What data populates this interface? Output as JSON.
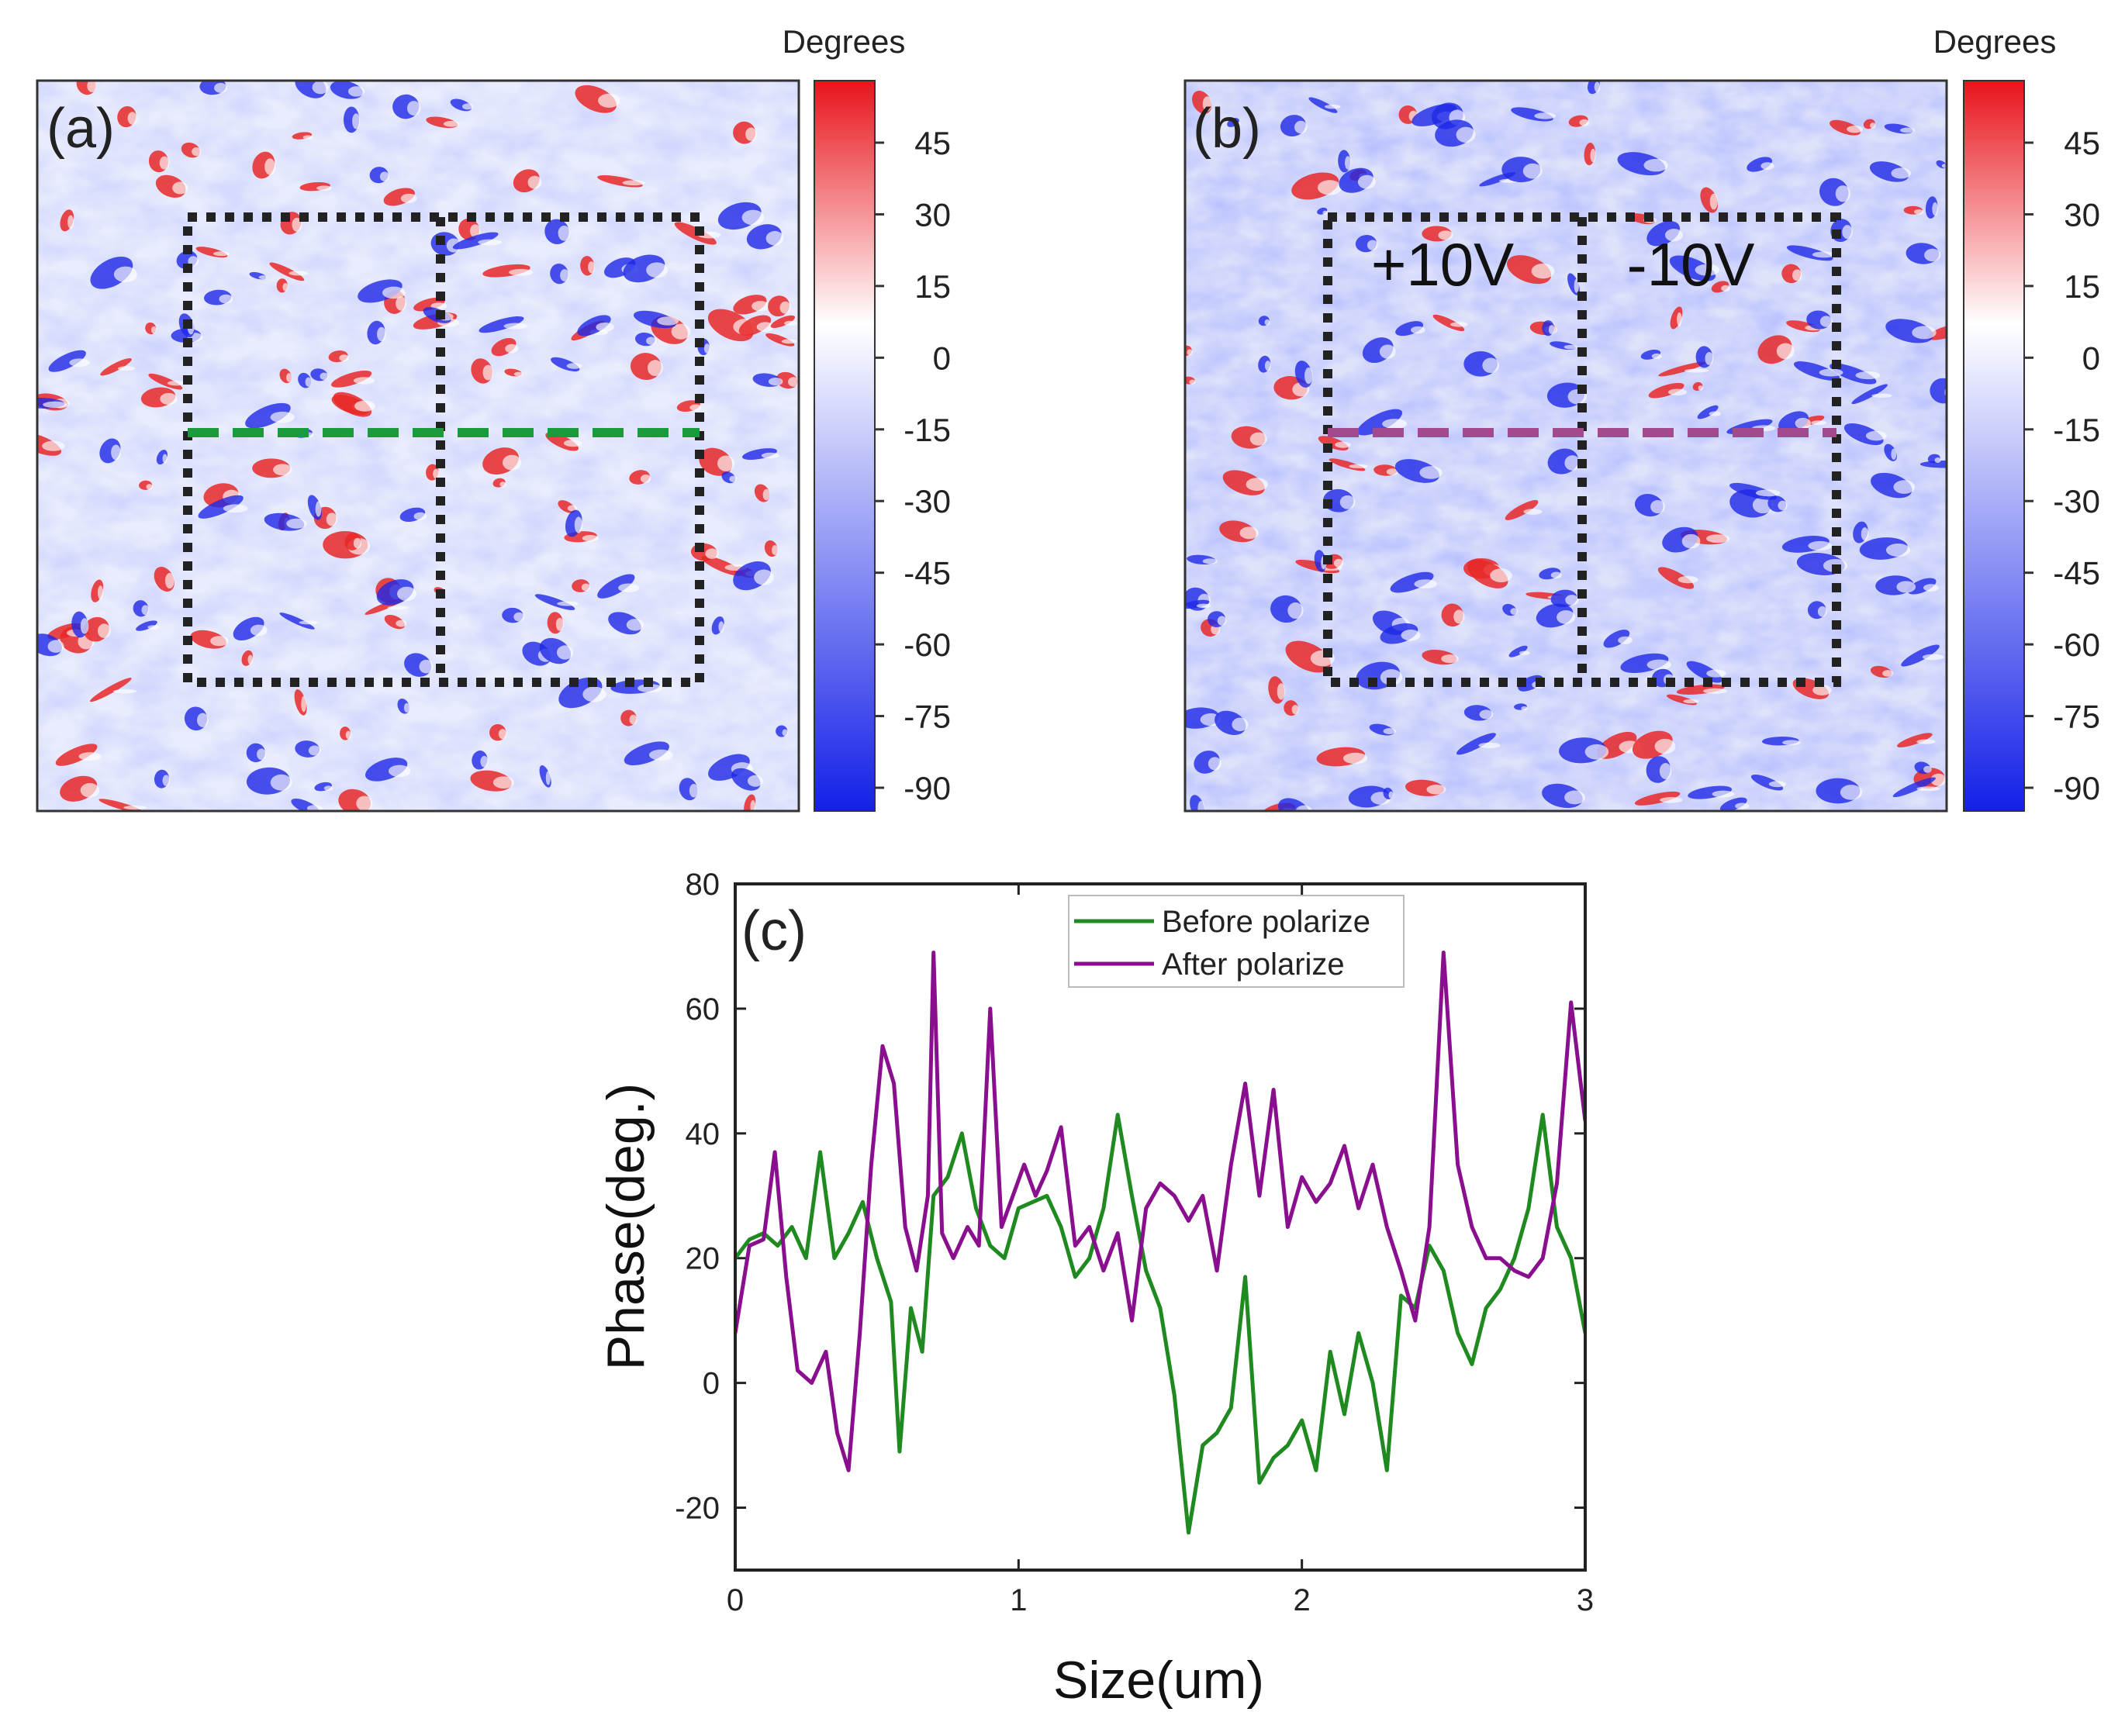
{
  "maps": [
    {
      "panel_label": "(a)",
      "colorbar": {
        "title": "Degrees",
        "ticks": [
          "45",
          "30",
          "15",
          "0",
          "-15",
          "-30",
          "-45",
          "-60",
          "-75",
          "-90"
        ]
      },
      "line_color": "#1a9a3a"
    },
    {
      "panel_label": "(b)",
      "colorbar": {
        "title": "Degrees",
        "ticks": [
          "45",
          "30",
          "15",
          "0",
          "-15",
          "-30",
          "-45",
          "-60",
          "-75",
          "-90"
        ]
      },
      "region_labels": [
        "+10V",
        "-10V"
      ],
      "line_color": "#a24a8e"
    }
  ],
  "colors": {
    "red": "#e8141c",
    "white": "#ffffff",
    "blue": "#1420e8",
    "green_line": "#1f8a1f",
    "purple_line": "#8a0f8e"
  },
  "chart_data": {
    "type": "line",
    "panel_label": "(c)",
    "xlabel": "Size(um)",
    "ylabel": "Phase(deg.)",
    "xlim": [
      0,
      3
    ],
    "ylim": [
      -30,
      80
    ],
    "xticks": [
      0,
      1,
      2,
      3
    ],
    "yticks": [
      -20,
      0,
      20,
      40,
      60,
      80
    ],
    "legend_position": "top-center",
    "series": [
      {
        "name": "Before polarize",
        "color": "#1f8a1f",
        "x": [
          0,
          0.05,
          0.1,
          0.15,
          0.2,
          0.25,
          0.3,
          0.35,
          0.4,
          0.45,
          0.5,
          0.55,
          0.58,
          0.62,
          0.66,
          0.7,
          0.75,
          0.8,
          0.85,
          0.9,
          0.95,
          1.0,
          1.05,
          1.1,
          1.15,
          1.2,
          1.25,
          1.3,
          1.35,
          1.4,
          1.45,
          1.5,
          1.55,
          1.6,
          1.65,
          1.7,
          1.75,
          1.8,
          1.85,
          1.9,
          1.95,
          2.0,
          2.05,
          2.1,
          2.15,
          2.2,
          2.25,
          2.3,
          2.35,
          2.4,
          2.45,
          2.5,
          2.55,
          2.6,
          2.65,
          2.7,
          2.75,
          2.8,
          2.85,
          2.9,
          2.95,
          3.0
        ],
        "y": [
          20,
          23,
          24,
          22,
          25,
          20,
          37,
          20,
          24,
          29,
          20,
          13,
          -11,
          12,
          5,
          30,
          33,
          40,
          28,
          22,
          20,
          28,
          29,
          30,
          25,
          17,
          20,
          28,
          43,
          30,
          18,
          12,
          -2,
          -24,
          -10,
          -8,
          -4,
          17,
          -16,
          -12,
          -10,
          -6,
          -14,
          5,
          -5,
          8,
          0,
          -14,
          14,
          12,
          22,
          18,
          8,
          3,
          12,
          15,
          20,
          28,
          43,
          25,
          20,
          8
        ]
      },
      {
        "name": "After polarize",
        "color": "#8a0f8e",
        "x": [
          0,
          0.05,
          0.1,
          0.14,
          0.18,
          0.22,
          0.27,
          0.32,
          0.36,
          0.4,
          0.44,
          0.48,
          0.52,
          0.56,
          0.6,
          0.64,
          0.68,
          0.7,
          0.73,
          0.77,
          0.82,
          0.86,
          0.9,
          0.94,
          0.98,
          1.02,
          1.06,
          1.1,
          1.15,
          1.2,
          1.25,
          1.3,
          1.35,
          1.4,
          1.45,
          1.5,
          1.55,
          1.6,
          1.65,
          1.7,
          1.75,
          1.8,
          1.85,
          1.9,
          1.95,
          2.0,
          2.05,
          2.1,
          2.15,
          2.2,
          2.25,
          2.3,
          2.35,
          2.4,
          2.45,
          2.5,
          2.55,
          2.6,
          2.65,
          2.7,
          2.75,
          2.8,
          2.85,
          2.9,
          2.95,
          3.0
        ],
        "y": [
          8,
          22,
          23,
          37,
          17,
          2,
          0,
          5,
          -8,
          -14,
          8,
          35,
          54,
          48,
          25,
          18,
          30,
          69,
          24,
          20,
          25,
          22,
          60,
          25,
          30,
          35,
          30,
          34,
          41,
          22,
          25,
          18,
          24,
          10,
          28,
          32,
          30,
          26,
          30,
          18,
          35,
          48,
          30,
          47,
          25,
          33,
          29,
          32,
          38,
          28,
          35,
          25,
          18,
          10,
          25,
          69,
          35,
          25,
          20,
          20,
          18,
          17,
          20,
          32,
          61,
          42
        ]
      }
    ]
  }
}
